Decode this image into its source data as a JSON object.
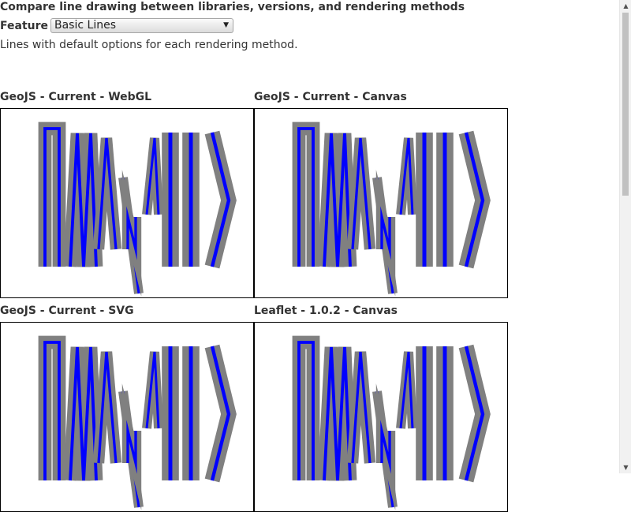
{
  "page": {
    "heading": "Compare line drawing between libraries, versions, and rendering methods",
    "description": "Lines with default options for each rendering method."
  },
  "feature": {
    "label": "Feature",
    "selected": "Basic Lines"
  },
  "panels": [
    {
      "title": "GeoJS - Current - WebGL"
    },
    {
      "title": "GeoJS - Current - Canvas"
    },
    {
      "title": "GeoJS - Current - SVG"
    },
    {
      "title": "Leaflet - 1.0.2 - Canvas"
    }
  ],
  "colors": {
    "stroke_outline": "#808080",
    "stroke_line": "#0000ff",
    "panel_border": "#000000"
  },
  "icons": {
    "select_arrow": "triangle-down-icon",
    "scroll_up": "triangle-up-icon",
    "scroll_down": "triangle-down-icon"
  }
}
